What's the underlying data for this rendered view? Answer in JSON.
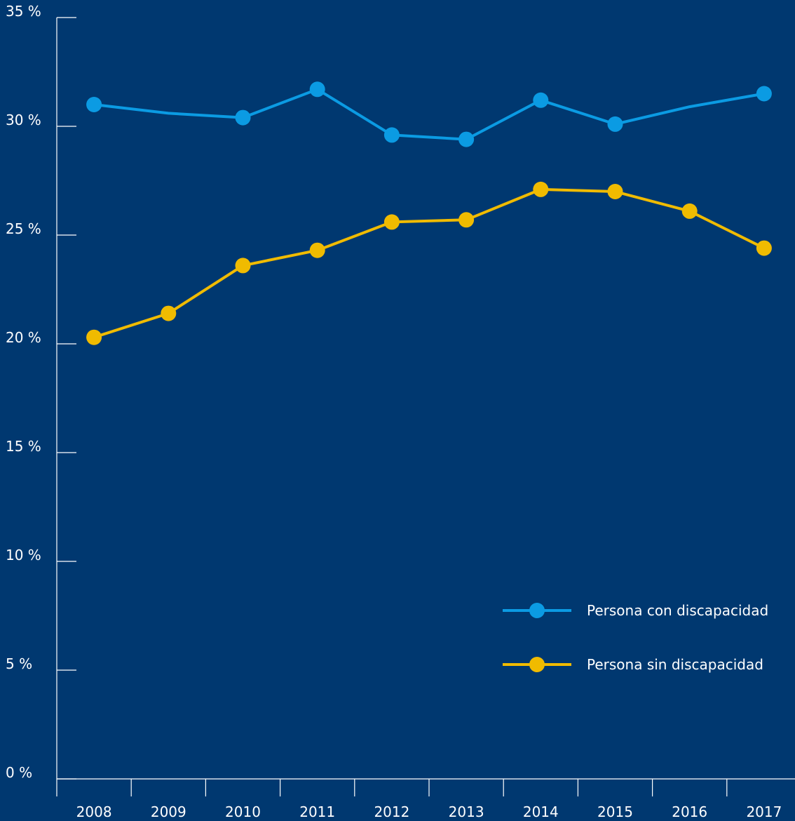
{
  "chart_data": {
    "type": "line",
    "x": [
      "2008",
      "2009",
      "2010",
      "2011",
      "2012",
      "2013",
      "2014",
      "2015",
      "2016",
      "2017"
    ],
    "series": [
      {
        "name": "Persona con discapacidad",
        "color": "#0b9be3",
        "values": [
          31.0,
          30.6,
          30.4,
          31.7,
          29.6,
          29.4,
          31.2,
          30.1,
          30.9,
          31.5
        ],
        "markers": [
          true,
          false,
          true,
          true,
          true,
          true,
          true,
          true,
          false,
          true
        ]
      },
      {
        "name": "Persona sin discapacidad",
        "color": "#f0bb00",
        "values": [
          20.3,
          21.4,
          23.6,
          24.3,
          25.6,
          25.7,
          27.1,
          27.0,
          26.1,
          24.4
        ],
        "markers": [
          true,
          true,
          true,
          true,
          true,
          true,
          true,
          true,
          true,
          true
        ]
      }
    ],
    "ylim": [
      0,
      35
    ],
    "yticks": [
      {
        "value": 0,
        "label": "0 %"
      },
      {
        "value": 5,
        "label": "5 %"
      },
      {
        "value": 10,
        "label": "10 %"
      },
      {
        "value": 15,
        "label": "15 %"
      },
      {
        "value": 20,
        "label": "20 %"
      },
      {
        "value": 25,
        "label": "25 %"
      },
      {
        "value": 30,
        "label": "30 %"
      },
      {
        "value": 35,
        "label": "35 %"
      }
    ],
    "legend": "lower right"
  }
}
